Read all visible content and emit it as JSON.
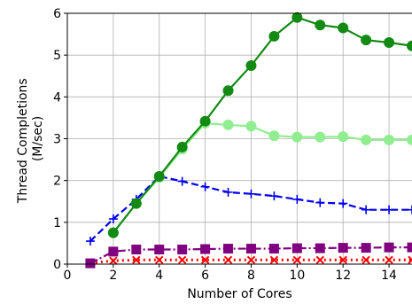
{
  "chart_data": {
    "type": "line",
    "title": "",
    "xlabel": "Number of Cores",
    "ylabel_lines": [
      "Thread Completions",
      "(M/sec)"
    ],
    "xlim": [
      0,
      15
    ],
    "ylim": [
      0,
      6
    ],
    "xticks": [
      0,
      2,
      4,
      6,
      8,
      10,
      12,
      14
    ],
    "yticks": [
      0,
      1,
      2,
      3,
      4,
      5,
      6
    ],
    "grid": true,
    "legend": null,
    "series": [
      {
        "color": "#ff0000",
        "style": "dotted",
        "marker": "x",
        "x": [
          1,
          2,
          3,
          4,
          5,
          6,
          7,
          8,
          9,
          10,
          11,
          12,
          13,
          14,
          15
        ],
        "y": [
          0.03,
          0.08,
          0.1,
          0.1,
          0.1,
          0.1,
          0.1,
          0.1,
          0.1,
          0.1,
          0.1,
          0.1,
          0.1,
          0.1,
          0.1
        ]
      },
      {
        "color": "#800080",
        "style": "dashdot",
        "marker": "square",
        "x": [
          1,
          2,
          3,
          4,
          5,
          6,
          7,
          8,
          9,
          10,
          11,
          12,
          13,
          14,
          15
        ],
        "y": [
          0.02,
          0.3,
          0.35,
          0.35,
          0.35,
          0.36,
          0.37,
          0.37,
          0.37,
          0.38,
          0.38,
          0.39,
          0.39,
          0.4,
          0.4
        ]
      },
      {
        "color": "#0000ee",
        "style": "dashed",
        "marker": "plus",
        "x": [
          1,
          2,
          3,
          4,
          5,
          6,
          7,
          8,
          9,
          10,
          11,
          12,
          13,
          14,
          15
        ],
        "y": [
          0.55,
          1.08,
          1.55,
          2.1,
          1.98,
          1.85,
          1.72,
          1.68,
          1.63,
          1.55,
          1.47,
          1.45,
          1.3,
          1.3,
          1.3
        ]
      },
      {
        "color": "#90ee90",
        "style": "solid",
        "marker": "circle",
        "x": [
          2,
          3,
          4,
          5,
          6,
          7,
          8,
          9,
          10,
          11,
          12,
          13,
          14,
          15
        ],
        "y": [
          0.75,
          1.45,
          2.07,
          2.75,
          3.37,
          3.33,
          3.3,
          3.07,
          3.04,
          3.04,
          3.05,
          2.97,
          2.97,
          2.97
        ]
      },
      {
        "color": "#138a13",
        "style": "solid",
        "marker": "circle",
        "x": [
          2,
          3,
          4,
          5,
          6,
          7,
          8,
          9,
          10,
          11,
          12,
          13,
          14,
          15
        ],
        "y": [
          0.75,
          1.45,
          2.1,
          2.8,
          3.42,
          4.15,
          4.75,
          5.45,
          5.9,
          5.72,
          5.65,
          5.36,
          5.3,
          5.22
        ]
      }
    ]
  }
}
